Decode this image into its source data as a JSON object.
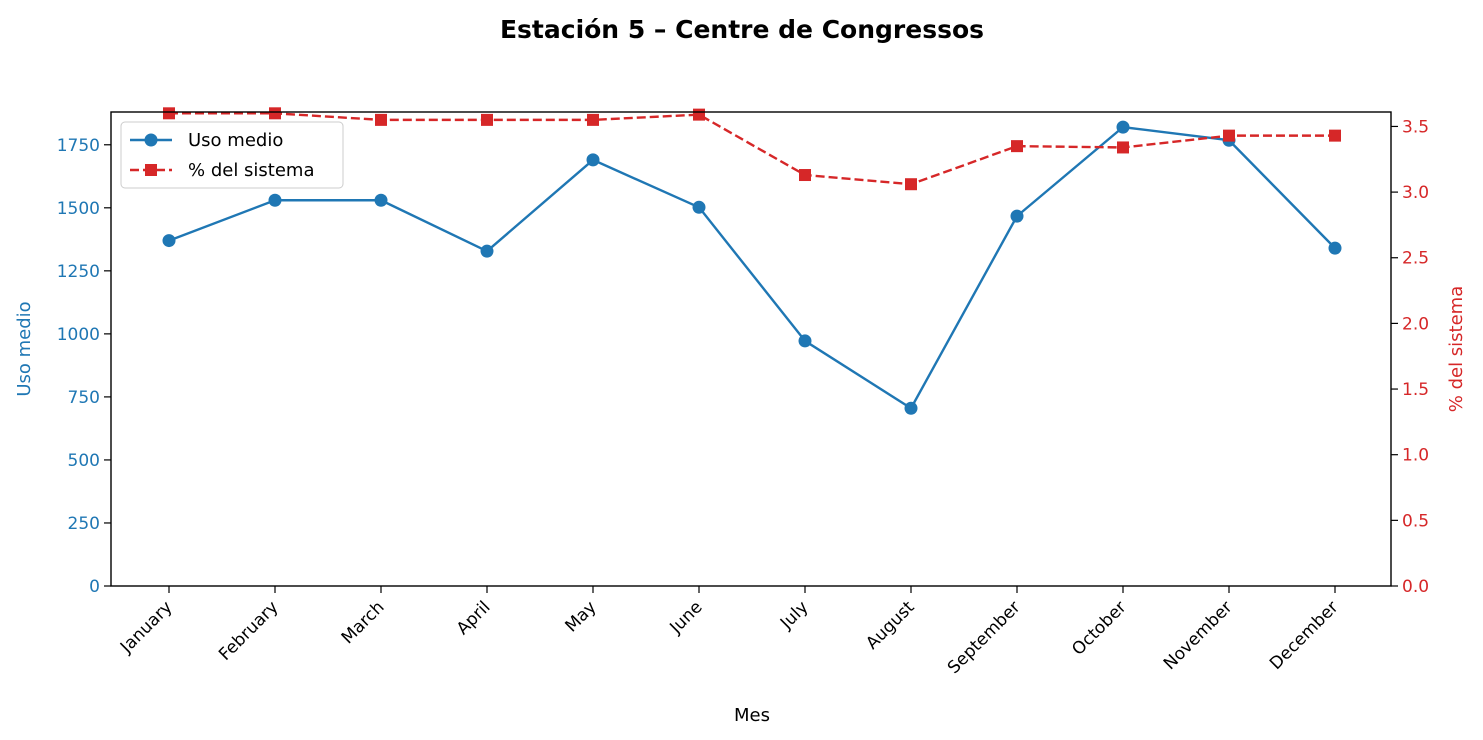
{
  "chart_data": {
    "type": "line",
    "title": "Estación 5 – Centre de Congressos",
    "xlabel": "Mes",
    "categories": [
      "January",
      "February",
      "March",
      "April",
      "May",
      "June",
      "July",
      "August",
      "September",
      "October",
      "November",
      "December"
    ],
    "y_left": {
      "label": "Uso medio",
      "color": "#1f77b4",
      "ylim": [
        0,
        1880
      ],
      "ticks": [
        "0",
        "250",
        "500",
        "750",
        "1000",
        "1250",
        "1500",
        "1750"
      ]
    },
    "y_right": {
      "label": "% del sistema",
      "color": "#d62728",
      "ylim": [
        0,
        3.61
      ],
      "ticks": [
        "0.0",
        "0.5",
        "1.0",
        "1.5",
        "2.0",
        "2.5",
        "3.0",
        "3.5"
      ]
    },
    "series": [
      {
        "name": "Uso medio",
        "axis": "left",
        "color": "#1f77b4",
        "style": "solid",
        "marker": "circle",
        "values": [
          1370,
          1530,
          1530,
          1328,
          1690,
          1502,
          972,
          705,
          1467,
          1820,
          1768,
          1340
        ]
      },
      {
        "name": "% del sistema",
        "axis": "right",
        "color": "#d62728",
        "style": "dashed",
        "marker": "square",
        "values": [
          3.6,
          3.6,
          3.55,
          3.55,
          3.55,
          3.59,
          3.13,
          3.06,
          3.35,
          3.34,
          3.43,
          3.43
        ]
      }
    ],
    "legend": {
      "placement": "top-left"
    },
    "grid": false
  }
}
